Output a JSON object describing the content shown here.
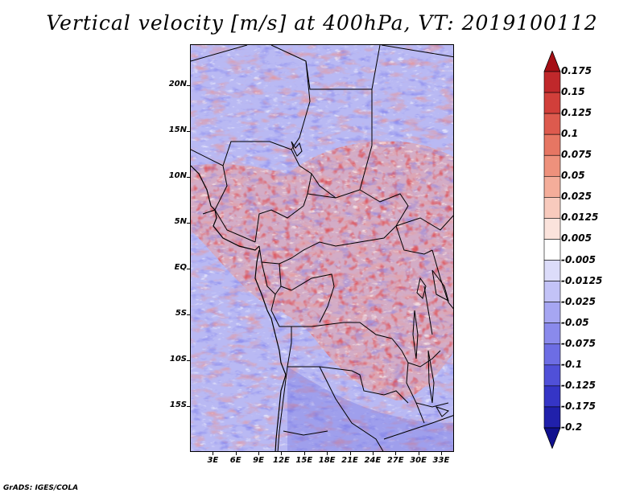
{
  "title": "Vertical velocity [m/s] at 400hPa, VT: 2019100112",
  "credit": "GrADS: IGES/COLA",
  "map": {
    "lon_range": [
      0,
      34.7
    ],
    "lat_range": [
      -20,
      24.5
    ],
    "lat_ticks": [
      {
        "value": 20,
        "label": "20N"
      },
      {
        "value": 15,
        "label": "15N"
      },
      {
        "value": 10,
        "label": "10N"
      },
      {
        "value": 5,
        "label": "5N"
      },
      {
        "value": 0,
        "label": "EQ"
      },
      {
        "value": -5,
        "label": "5S"
      },
      {
        "value": -10,
        "label": "10S"
      },
      {
        "value": -15,
        "label": "15S"
      }
    ],
    "lon_ticks": [
      {
        "value": 3,
        "label": "3E"
      },
      {
        "value": 6,
        "label": "6E"
      },
      {
        "value": 9,
        "label": "9E"
      },
      {
        "value": 12,
        "label": "12E"
      },
      {
        "value": 15,
        "label": "15E"
      },
      {
        "value": 18,
        "label": "18E"
      },
      {
        "value": 21,
        "label": "21E"
      },
      {
        "value": 24,
        "label": "24E"
      },
      {
        "value": 27,
        "label": "27E"
      },
      {
        "value": 30,
        "label": "30E"
      },
      {
        "value": 33,
        "label": "33E"
      }
    ]
  },
  "colorbar": {
    "labels": [
      "0.175",
      "0.15",
      "0.125",
      "0.1",
      "0.075",
      "0.05",
      "0.025",
      "0.0125",
      "0.005",
      "-0.005",
      "-0.0125",
      "-0.025",
      "-0.05",
      "-0.075",
      "-0.1",
      "-0.125",
      "-0.175",
      "-0.2"
    ],
    "colors": [
      "#a50f15",
      "#c0282b",
      "#d13f3a",
      "#dd5a4e",
      "#e67663",
      "#ee917c",
      "#f4ad9a",
      "#f8cabd",
      "#fbe3dc",
      "#ffffff",
      "#dcdcfa",
      "#c3c3f7",
      "#a6a6f2",
      "#8a8aec",
      "#6d6de4",
      "#5050d8",
      "#3535c6",
      "#2020ab",
      "#10108e"
    ]
  }
}
